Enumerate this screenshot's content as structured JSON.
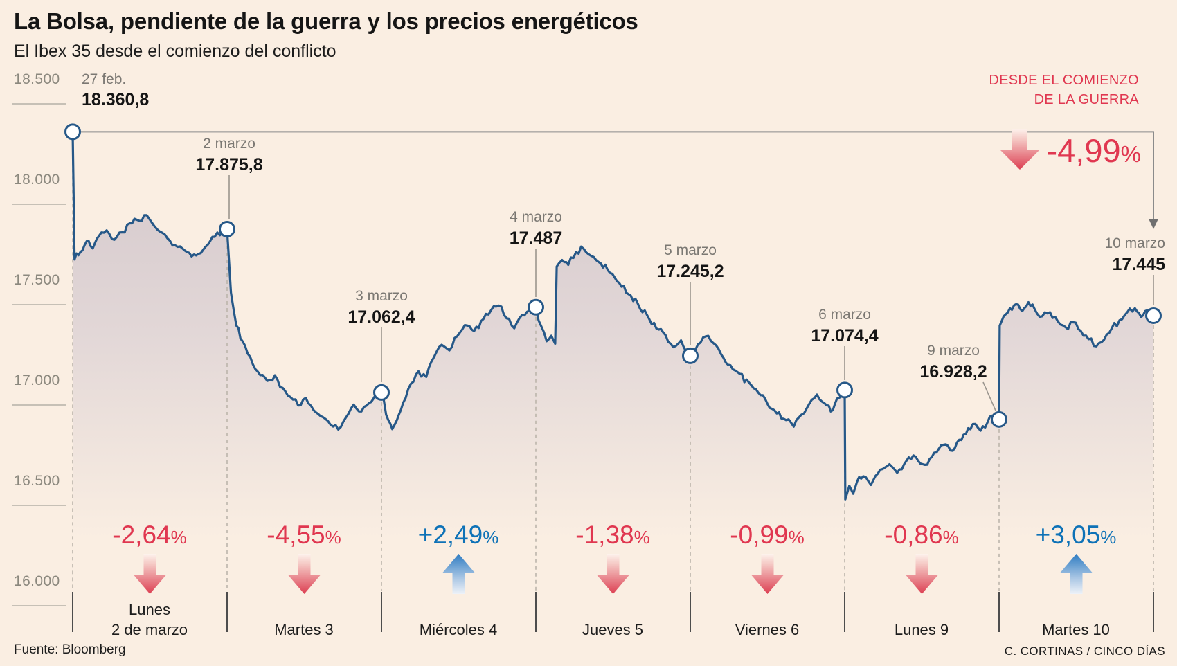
{
  "header": {
    "title": "La Bolsa, pendiente de la guerra y los precios energéticos",
    "subtitle": "El Ibex 35 desde el comienzo del conflicto"
  },
  "percent_sign": "%",
  "chart_data": {
    "type": "line",
    "title": "La Bolsa, pendiente de la guerra y los precios energéticos",
    "subtitle": "El Ibex 35 desde el comienzo del conflicto",
    "ylim": [
      16000,
      18500
    ],
    "y_axis": {
      "ticks": [
        {
          "label": "18.500",
          "v": 18500
        },
        {
          "label": "18.000",
          "v": 18000
        },
        {
          "label": "17.500",
          "v": 17500
        },
        {
          "label": "17.000",
          "v": 17000
        },
        {
          "label": "16.500",
          "v": 16500
        },
        {
          "label": "16.000",
          "v": 16000
        }
      ]
    },
    "key_points": [
      {
        "date": "27 feb.",
        "label": "18.360,8",
        "v": 18360.8
      },
      {
        "date": "2 marzo",
        "label": "17.875,8",
        "v": 17875.8
      },
      {
        "date": "3 marzo",
        "label": "17.062,4",
        "v": 17062.4
      },
      {
        "date": "4 marzo",
        "label": "17.487",
        "v": 17487
      },
      {
        "date": "5 marzo",
        "label": "17.245,2",
        "v": 17245.2
      },
      {
        "date": "6 marzo",
        "label": "17.074,4",
        "v": 17074.4
      },
      {
        "date": "9 marzo",
        "label": "16.928,2",
        "v": 16928.2
      },
      {
        "date": "10 marzo",
        "label": "17.445",
        "v": 17445
      }
    ],
    "days": [
      {
        "line1": "Lunes",
        "line2": "2 de marzo",
        "pct": "-2,64",
        "dir": "down"
      },
      {
        "line1": "",
        "line2": "Martes 3",
        "pct": "-4,55",
        "dir": "down"
      },
      {
        "line1": "",
        "line2": "Miércoles 4",
        "pct": "+2,49",
        "dir": "up"
      },
      {
        "line1": "",
        "line2": "Jueves 5",
        "pct": "-1,38",
        "dir": "down"
      },
      {
        "line1": "",
        "line2": "Viernes 6",
        "pct": "-0,99",
        "dir": "down"
      },
      {
        "line1": "",
        "line2": "Lunes 9",
        "pct": "-0,86",
        "dir": "down"
      },
      {
        "line1": "",
        "line2": "Martes 10",
        "pct": "+3,05",
        "dir": "up"
      }
    ],
    "since_war": {
      "line1": "DESDE EL COMIENZO",
      "line2": "DE LA GUERRA",
      "pct": "-4,99",
      "dir": "down"
    },
    "colors": {
      "line": "#265888",
      "red": "#e03750",
      "blue": "#0e72b7",
      "background": "#faeee2",
      "fill_top": "#d2c6ca",
      "gray": "#8b8b8b"
    },
    "intraday": [
      [
        [
          0,
          18360.8
        ],
        [
          0.012,
          17725
        ],
        [
          0.05,
          17762
        ],
        [
          0.09,
          17815
        ],
        [
          0.13,
          17780
        ],
        [
          0.17,
          17842
        ],
        [
          0.22,
          17870
        ],
        [
          0.27,
          17823
        ],
        [
          0.32,
          17860
        ],
        [
          0.37,
          17905
        ],
        [
          0.43,
          17918
        ],
        [
          0.48,
          17945
        ],
        [
          0.53,
          17890
        ],
        [
          0.58,
          17858
        ],
        [
          0.63,
          17818
        ],
        [
          0.68,
          17788
        ],
        [
          0.74,
          17762
        ],
        [
          0.8,
          17745
        ],
        [
          0.86,
          17788
        ],
        [
          0.92,
          17838
        ],
        [
          0.97,
          17858
        ],
        [
          1,
          17875.8
        ]
      ],
      [
        [
          0,
          17875.8
        ],
        [
          0.025,
          17560
        ],
        [
          0.06,
          17395
        ],
        [
          0.1,
          17318
        ],
        [
          0.15,
          17240
        ],
        [
          0.2,
          17165
        ],
        [
          0.26,
          17120
        ],
        [
          0.31,
          17148
        ],
        [
          0.36,
          17085
        ],
        [
          0.41,
          17040
        ],
        [
          0.46,
          16998
        ],
        [
          0.51,
          17035
        ],
        [
          0.56,
          16975
        ],
        [
          0.62,
          16940
        ],
        [
          0.67,
          16902
        ],
        [
          0.72,
          16878
        ],
        [
          0.77,
          16938
        ],
        [
          0.82,
          17002
        ],
        [
          0.87,
          16968
        ],
        [
          0.92,
          17010
        ],
        [
          0.96,
          17048
        ],
        [
          1,
          17062.4
        ]
      ],
      [
        [
          0,
          17062.4
        ],
        [
          0.03,
          16952
        ],
        [
          0.07,
          16880
        ],
        [
          0.1,
          16925
        ],
        [
          0.14,
          17010
        ],
        [
          0.19,
          17105
        ],
        [
          0.24,
          17168
        ],
        [
          0.29,
          17140
        ],
        [
          0.34,
          17238
        ],
        [
          0.39,
          17300
        ],
        [
          0.44,
          17272
        ],
        [
          0.49,
          17342
        ],
        [
          0.54,
          17398
        ],
        [
          0.6,
          17368
        ],
        [
          0.66,
          17428
        ],
        [
          0.71,
          17472
        ],
        [
          0.76,
          17495
        ],
        [
          0.81,
          17432
        ],
        [
          0.86,
          17382
        ],
        [
          0.91,
          17448
        ],
        [
          0.96,
          17470
        ],
        [
          1,
          17487
        ]
      ],
      [
        [
          0,
          17487
        ],
        [
          0.035,
          17392
        ],
        [
          0.07,
          17318
        ],
        [
          0.1,
          17345
        ],
        [
          0.125,
          17305
        ],
        [
          0.135,
          17690
        ],
        [
          0.17,
          17722
        ],
        [
          0.21,
          17698
        ],
        [
          0.26,
          17762
        ],
        [
          0.31,
          17778
        ],
        [
          0.36,
          17742
        ],
        [
          0.42,
          17705
        ],
        [
          0.48,
          17658
        ],
        [
          0.54,
          17608
        ],
        [
          0.6,
          17552
        ],
        [
          0.66,
          17505
        ],
        [
          0.72,
          17448
        ],
        [
          0.78,
          17382
        ],
        [
          0.84,
          17348
        ],
        [
          0.89,
          17288
        ],
        [
          0.94,
          17322
        ],
        [
          1,
          17245.2
        ]
      ],
      [
        [
          0,
          17245.2
        ],
        [
          0.05,
          17302
        ],
        [
          0.1,
          17342
        ],
        [
          0.15,
          17308
        ],
        [
          0.2,
          17252
        ],
        [
          0.26,
          17198
        ],
        [
          0.32,
          17155
        ],
        [
          0.38,
          17112
        ],
        [
          0.44,
          17062
        ],
        [
          0.5,
          17005
        ],
        [
          0.56,
          16958
        ],
        [
          0.62,
          16925
        ],
        [
          0.67,
          16892
        ],
        [
          0.72,
          16952
        ],
        [
          0.77,
          17005
        ],
        [
          0.82,
          17052
        ],
        [
          0.87,
          17008
        ],
        [
          0.91,
          16968
        ],
        [
          0.95,
          17032
        ],
        [
          1,
          17074.4
        ]
      ],
      [
        [
          0,
          17074.4
        ],
        [
          0.004,
          16530
        ],
        [
          0.03,
          16598
        ],
        [
          0.055,
          16558
        ],
        [
          0.08,
          16618
        ],
        [
          0.12,
          16645
        ],
        [
          0.17,
          16602
        ],
        [
          0.23,
          16678
        ],
        [
          0.29,
          16705
        ],
        [
          0.34,
          16662
        ],
        [
          0.4,
          16722
        ],
        [
          0.46,
          16742
        ],
        [
          0.52,
          16702
        ],
        [
          0.58,
          16762
        ],
        [
          0.64,
          16802
        ],
        [
          0.7,
          16772
        ],
        [
          0.77,
          16852
        ],
        [
          0.83,
          16905
        ],
        [
          0.88,
          16872
        ],
        [
          0.94,
          16942
        ],
        [
          1,
          16928.2
        ]
      ],
      [
        [
          0,
          16928.2
        ],
        [
          0.004,
          17395
        ],
        [
          0.03,
          17442
        ],
        [
          0.07,
          17482
        ],
        [
          0.11,
          17502
        ],
        [
          0.15,
          17468
        ],
        [
          0.19,
          17512
        ],
        [
          0.23,
          17478
        ],
        [
          0.28,
          17442
        ],
        [
          0.33,
          17462
        ],
        [
          0.38,
          17418
        ],
        [
          0.43,
          17388
        ],
        [
          0.48,
          17412
        ],
        [
          0.53,
          17368
        ],
        [
          0.58,
          17328
        ],
        [
          0.63,
          17292
        ],
        [
          0.68,
          17325
        ],
        [
          0.73,
          17382
        ],
        [
          0.78,
          17422
        ],
        [
          0.83,
          17462
        ],
        [
          0.88,
          17482
        ],
        [
          0.92,
          17438
        ],
        [
          0.96,
          17472
        ],
        [
          1,
          17445
        ]
      ]
    ]
  },
  "footer": {
    "source": "Fuente: Bloomberg",
    "credit": "C. CORTINAS / CINCO DÍAS"
  }
}
